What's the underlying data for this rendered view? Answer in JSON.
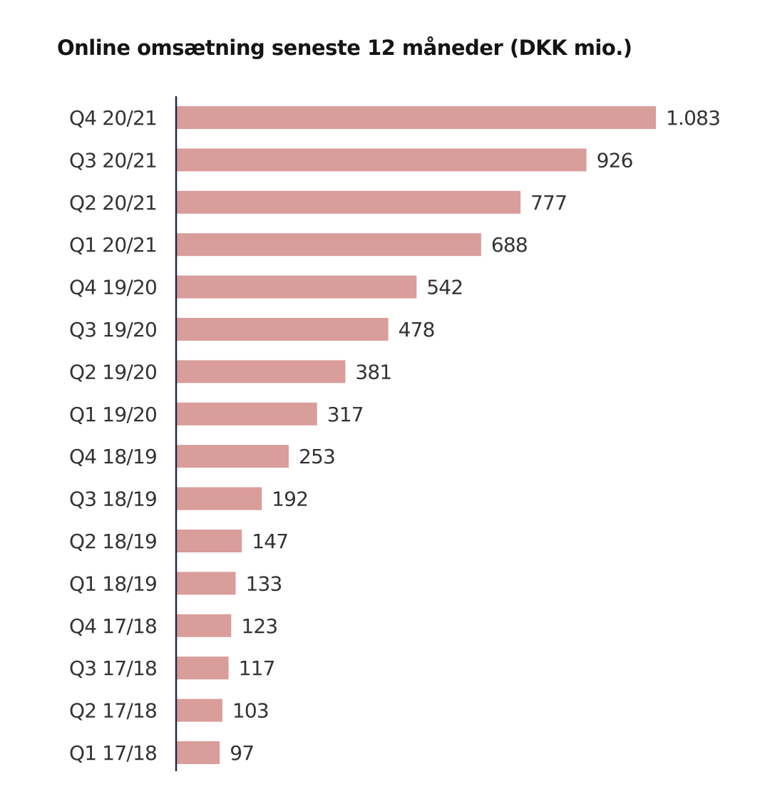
{
  "chart_data": {
    "type": "bar",
    "orientation": "horizontal",
    "title": "Online omsætning seneste 12 måneder (DKK mio.)",
    "xlabel": "",
    "ylabel": "",
    "categories": [
      "Q4 20/21",
      "Q3 20/21",
      "Q2 20/21",
      "Q1 20/21",
      "Q4 19/20",
      "Q3 19/20",
      "Q2 19/20",
      "Q1 19/20",
      "Q4 18/19",
      "Q3 18/19",
      "Q2 18/19",
      "Q1 18/19",
      "Q4 17/18",
      "Q3 17/18",
      "Q2 17/18",
      "Q1 17/18"
    ],
    "values": [
      1083,
      926,
      777,
      688,
      542,
      478,
      381,
      317,
      253,
      192,
      147,
      133,
      123,
      117,
      103,
      97
    ],
    "value_labels": [
      "1.083",
      "926",
      "777",
      "688",
      "542",
      "478",
      "381",
      "317",
      "253",
      "192",
      "147",
      "133",
      "123",
      "117",
      "103",
      "97"
    ],
    "xlim": [
      0,
      1083
    ],
    "grid": false,
    "legend": "none",
    "bar_color": "#d99d9a",
    "axis_color": "#1c2b45"
  }
}
